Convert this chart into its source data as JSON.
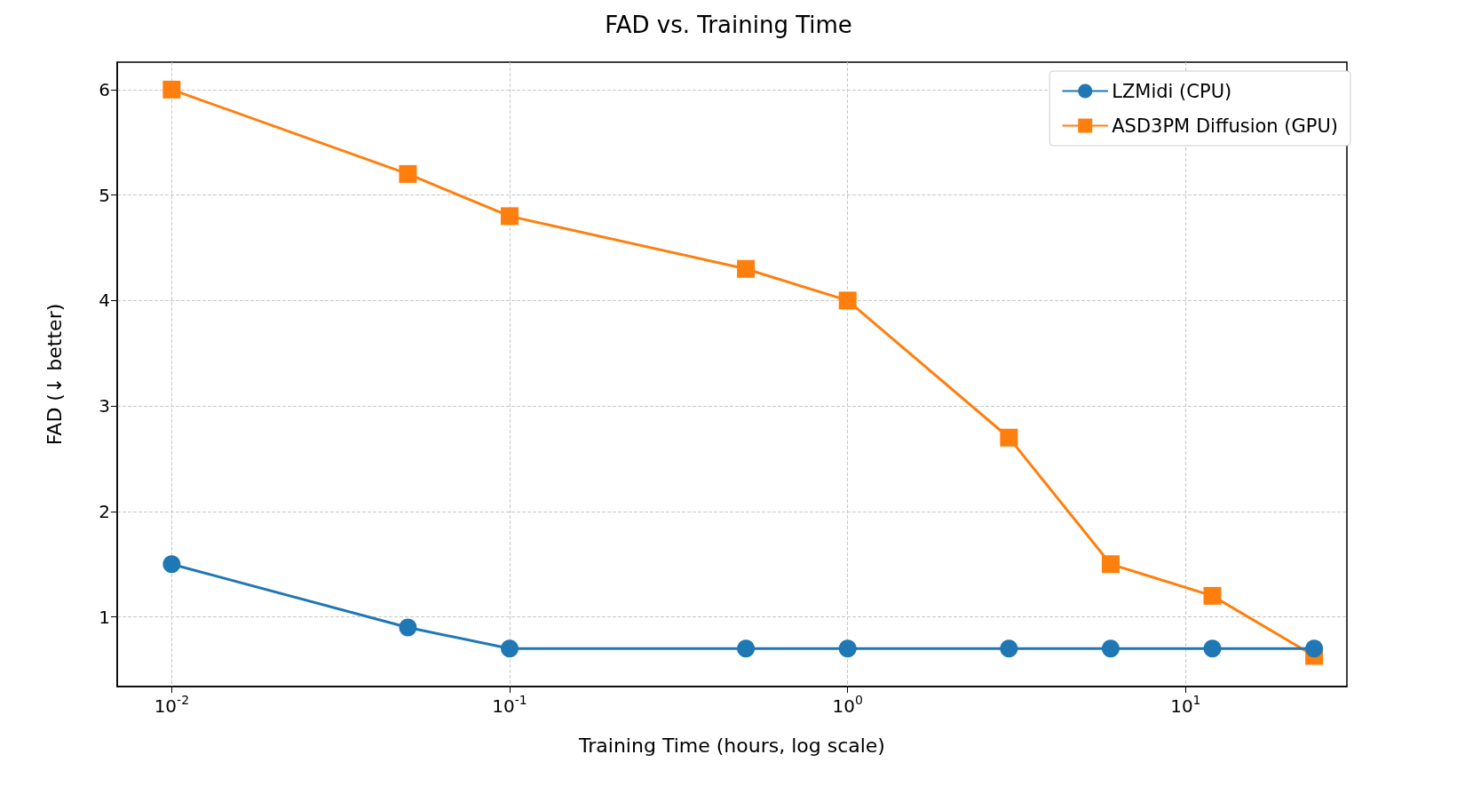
{
  "chart_data": {
    "type": "line",
    "title": "FAD vs. Training Time",
    "xlabel": "Training Time (hours, log scale)",
    "ylabel": "FAD (↓ better)",
    "x": [
      0.01,
      0.05,
      0.1,
      0.5,
      1,
      3,
      6,
      12,
      24
    ],
    "series": [
      {
        "name": "LZMidi (CPU)",
        "color": "#1f77b4",
        "marker": "circle",
        "values": [
          1.5,
          0.9,
          0.7,
          0.7,
          0.7,
          0.7,
          0.7,
          0.7,
          0.7
        ]
      },
      {
        "name": "ASD3PM Diffusion (GPU)",
        "color": "#ff7f0e",
        "marker": "square",
        "values": [
          6.0,
          5.2,
          4.8,
          4.3,
          4.0,
          2.7,
          1.5,
          1.2,
          0.63
        ]
      }
    ],
    "log": "x",
    "xlim": [
      0.0069,
      30
    ],
    "ylim": [
      0.34,
      6.26
    ],
    "xticks": [
      {
        "value": 0.01,
        "label": "10$^{-2}$"
      },
      {
        "value": 0.1,
        "label": "10$^{-1}$"
      },
      {
        "value": 1,
        "label": "10$^{0}$"
      },
      {
        "value": 10,
        "label": "10$^{1}$"
      }
    ],
    "yticks": [
      1,
      2,
      3,
      4,
      5,
      6
    ],
    "grid": true,
    "legend": "top right",
    "line_style": "solid"
  }
}
